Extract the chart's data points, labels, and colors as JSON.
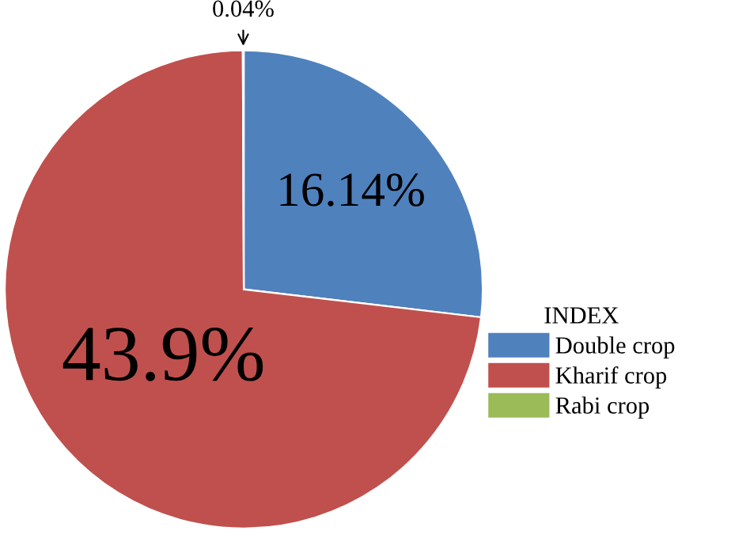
{
  "chart_data": {
    "type": "pie",
    "legend_title": "INDEX",
    "categories": [
      "Double crop",
      "Kharif crop",
      "Rabi crop"
    ],
    "values": [
      16.14,
      43.9,
      0.04
    ],
    "colors": [
      "#4f81bd",
      "#c0504d",
      "#9bbb59"
    ],
    "value_labels": [
      "16.14%",
      "43.9%",
      "0.04%"
    ],
    "legend": "right"
  }
}
